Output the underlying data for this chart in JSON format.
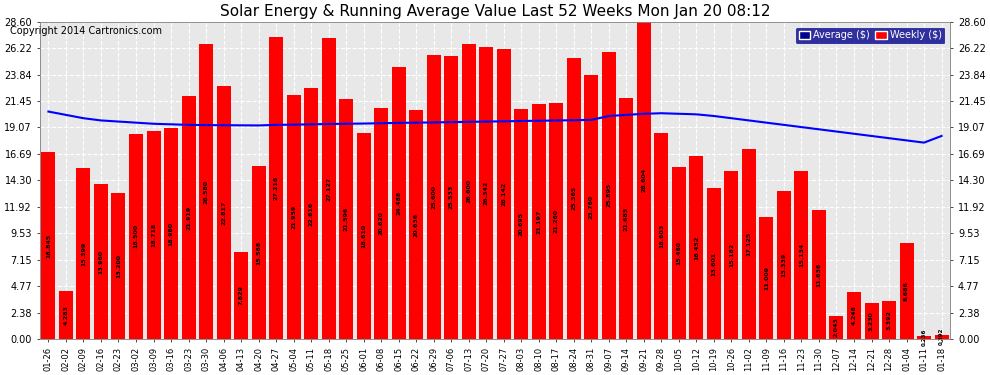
{
  "title": "Solar Energy & Running Average Value Last 52 Weeks Mon Jan 20 08:12",
  "copyright": "Copyright 2014 Cartronics.com",
  "bar_color": "#ff0000",
  "avg_line_color": "#0000ff",
  "background_color": "#ffffff",
  "plot_bg_color": "#e8e8e8",
  "grid_color": "#ffffff",
  "ylim": [
    0,
    28.6
  ],
  "yticks": [
    0.0,
    2.38,
    4.77,
    7.15,
    9.53,
    11.92,
    14.3,
    16.69,
    19.07,
    21.45,
    23.84,
    26.22,
    28.6
  ],
  "categories": [
    "01-26",
    "02-02",
    "02-09",
    "02-16",
    "02-23",
    "03-02",
    "03-09",
    "03-16",
    "03-23",
    "03-30",
    "04-06",
    "04-13",
    "04-20",
    "04-27",
    "05-04",
    "05-11",
    "05-18",
    "05-25",
    "06-01",
    "06-08",
    "06-15",
    "06-22",
    "06-29",
    "07-06",
    "07-13",
    "07-20",
    "07-27",
    "08-03",
    "08-10",
    "08-17",
    "08-24",
    "08-31",
    "09-07",
    "09-14",
    "09-21",
    "09-28",
    "10-05",
    "10-12",
    "10-19",
    "10-26",
    "11-02",
    "11-09",
    "11-16",
    "11-23",
    "11-30",
    "12-07",
    "12-14",
    "12-21",
    "12-28",
    "01-04",
    "01-11",
    "01-18"
  ],
  "weekly_values": [
    16.845,
    4.283,
    15.399,
    13.96,
    13.2,
    18.5,
    18.718,
    18.98,
    21.919,
    26.58,
    22.817,
    7.829,
    15.568,
    27.216,
    21.959,
    22.616,
    27.127,
    21.596,
    18.61,
    20.82,
    24.488,
    20.636,
    25.6,
    25.533,
    26.6,
    26.342,
    26.142,
    20.695,
    21.197,
    21.26,
    25.365,
    23.76,
    25.895,
    21.685,
    28.604,
    18.603,
    15.46,
    16.452,
    13.601,
    15.182,
    17.125,
    11.009,
    13.339,
    15.134,
    11.636,
    2.043,
    4.248,
    3.23,
    3.392,
    8.686,
    0.236,
    0.392
  ],
  "avg_values": [
    20.5,
    20.2,
    19.9,
    19.7,
    19.6,
    19.5,
    19.4,
    19.35,
    19.3,
    19.28,
    19.27,
    19.26,
    19.25,
    19.3,
    19.32,
    19.35,
    19.38,
    19.4,
    19.42,
    19.45,
    19.48,
    19.5,
    19.52,
    19.55,
    19.57,
    19.6,
    19.62,
    19.65,
    19.67,
    19.7,
    19.72,
    19.75,
    20.1,
    20.2,
    20.3,
    20.35,
    20.3,
    20.25,
    20.1,
    19.9,
    19.7,
    19.5,
    19.3,
    19.1,
    18.9,
    18.7,
    18.5,
    18.3,
    18.1,
    17.9,
    17.7,
    18.3
  ],
  "legend_avg_color": "#0000cd",
  "legend_avg_bg": "#00008b",
  "legend_weekly_color": "#ff0000"
}
